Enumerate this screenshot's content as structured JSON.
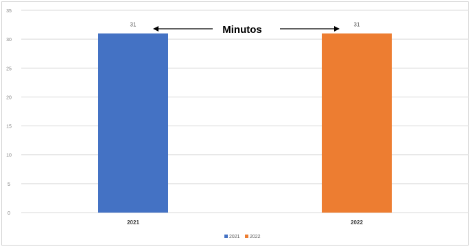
{
  "chart_data": {
    "type": "bar",
    "categories": [
      "2021",
      "2022"
    ],
    "series": [
      {
        "name": "2021",
        "color": "#4472C4",
        "values": [
          31,
          null
        ]
      },
      {
        "name": "2022",
        "color": "#ED7D31",
        "values": [
          null,
          31
        ]
      }
    ],
    "data_labels": [
      "31",
      "31"
    ],
    "annotation": "Minutos",
    "ylim": [
      0,
      35
    ],
    "yticks": [
      "0",
      "5",
      "10",
      "15",
      "20",
      "25",
      "30",
      "35"
    ],
    "grid": true,
    "legend_position": "bottom"
  }
}
